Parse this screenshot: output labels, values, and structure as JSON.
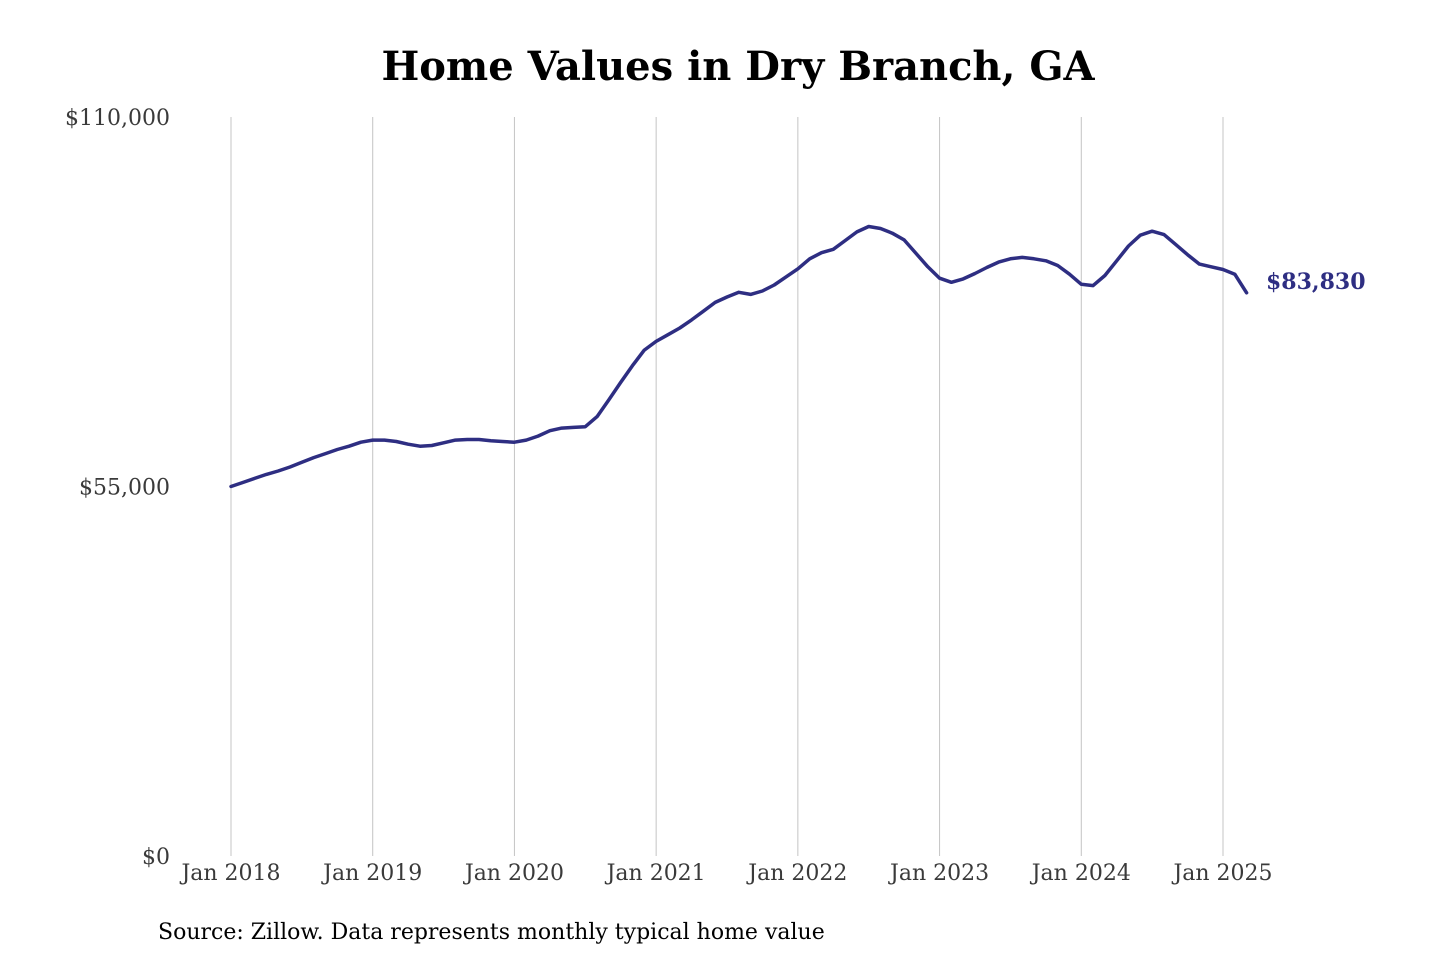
{
  "chart_data": {
    "type": "line",
    "title": "Home Values in Dry Branch, GA",
    "source": "Source: Zillow. Data represents monthly typical home value",
    "xlabel": "",
    "ylabel": "",
    "ylim": [
      0,
      110000
    ],
    "yticks": [
      {
        "value": 0,
        "label": "$0"
      },
      {
        "value": 55000,
        "label": "$55,000"
      },
      {
        "value": 110000,
        "label": "$110,000"
      }
    ],
    "xticks": [
      {
        "value": "2018-01",
        "label": "Jan 2018"
      },
      {
        "value": "2019-01",
        "label": "Jan 2019"
      },
      {
        "value": "2020-01",
        "label": "Jan 2020"
      },
      {
        "value": "2021-01",
        "label": "Jan 2021"
      },
      {
        "value": "2022-01",
        "label": "Jan 2022"
      },
      {
        "value": "2023-01",
        "label": "Jan 2023"
      },
      {
        "value": "2024-01",
        "label": "Jan 2024"
      },
      {
        "value": "2025-01",
        "label": "Jan 2025"
      }
    ],
    "grid": {
      "vertical": true,
      "horizontal": false
    },
    "color": "#2e2e82",
    "end_label": "$83,830",
    "series": [
      {
        "x": [
          "2018-01",
          "2018-02",
          "2018-03",
          "2018-04",
          "2018-05",
          "2018-06",
          "2018-07",
          "2018-08",
          "2018-09",
          "2018-10",
          "2018-11",
          "2018-12",
          "2019-01",
          "2019-02",
          "2019-03",
          "2019-04",
          "2019-05",
          "2019-06",
          "2019-07",
          "2019-08",
          "2019-09",
          "2019-10",
          "2019-11",
          "2019-12",
          "2020-01",
          "2020-02",
          "2020-03",
          "2020-04",
          "2020-05",
          "2020-06",
          "2020-07",
          "2020-08",
          "2020-09",
          "2020-10",
          "2020-11",
          "2020-12",
          "2021-01",
          "2021-02",
          "2021-03",
          "2021-04",
          "2021-05",
          "2021-06",
          "2021-07",
          "2021-08",
          "2021-09",
          "2021-10",
          "2021-11",
          "2021-12",
          "2022-01",
          "2022-02",
          "2022-03",
          "2022-04",
          "2022-05",
          "2022-06",
          "2022-07",
          "2022-08",
          "2022-09",
          "2022-10",
          "2022-11",
          "2022-12",
          "2023-01",
          "2023-02",
          "2023-03",
          "2023-04",
          "2023-05",
          "2023-06",
          "2023-07",
          "2023-08",
          "2023-09",
          "2023-10",
          "2023-11",
          "2023-12",
          "2024-01",
          "2024-02",
          "2024-03",
          "2024-04",
          "2024-05",
          "2024-06",
          "2024-07",
          "2024-08",
          "2024-09",
          "2024-10",
          "2024-11",
          "2024-12",
          "2025-01",
          "2025-02",
          "2025-03"
        ],
        "values": [
          55000,
          55600,
          56200,
          56800,
          57300,
          57900,
          58600,
          59300,
          59900,
          60500,
          61000,
          61600,
          61900,
          61900,
          61700,
          61300,
          61000,
          61100,
          61500,
          61900,
          62000,
          62000,
          61800,
          61700,
          61600,
          61900,
          62500,
          63300,
          63700,
          63800,
          63900,
          65400,
          67900,
          70500,
          73000,
          75300,
          76600,
          77600,
          78600,
          79800,
          81100,
          82400,
          83200,
          83900,
          83600,
          84100,
          85000,
          86200,
          87400,
          88900,
          89800,
          90300,
          91600,
          92900,
          93700,
          93400,
          92700,
          91700,
          89700,
          87700,
          86000,
          85400,
          85900,
          86700,
          87600,
          88400,
          88900,
          89100,
          88900,
          88600,
          87900,
          86600,
          85100,
          84900,
          86400,
          88600,
          90800,
          92400,
          93000,
          92500,
          91000,
          89500,
          88100,
          87700,
          87300,
          86600,
          83830
        ]
      }
    ]
  }
}
